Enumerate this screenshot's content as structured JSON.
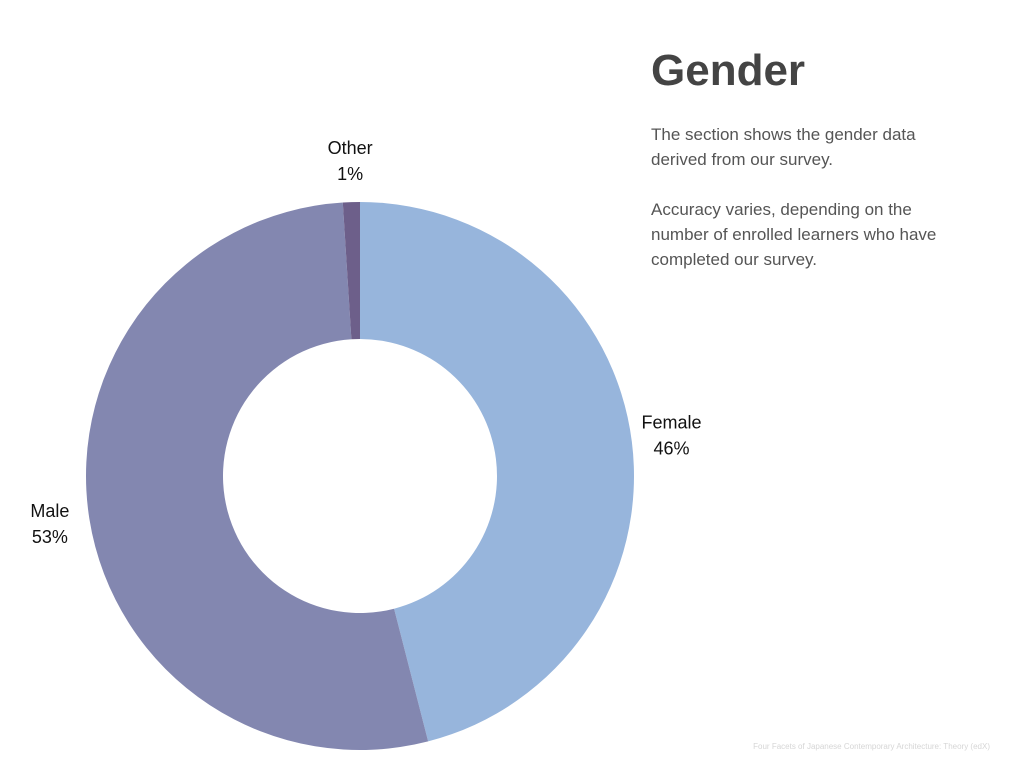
{
  "chart_data": {
    "type": "donut",
    "title": "Gender",
    "annotations": [
      "The section shows the gender data derived from our survey.",
      "Accuracy varies, depending on the number of enrolled learners who have completed our survey."
    ],
    "source": "Four Facets of Japanese Contemporary Architecture: Theory (edX)",
    "categories": [
      "Female",
      "Male",
      "Other"
    ],
    "values": [
      46,
      53,
      1
    ],
    "value_labels": [
      "46%",
      "53%",
      "1%"
    ],
    "colors": [
      "#97b5dc",
      "#8387b0",
      "#6d5f8a"
    ]
  }
}
